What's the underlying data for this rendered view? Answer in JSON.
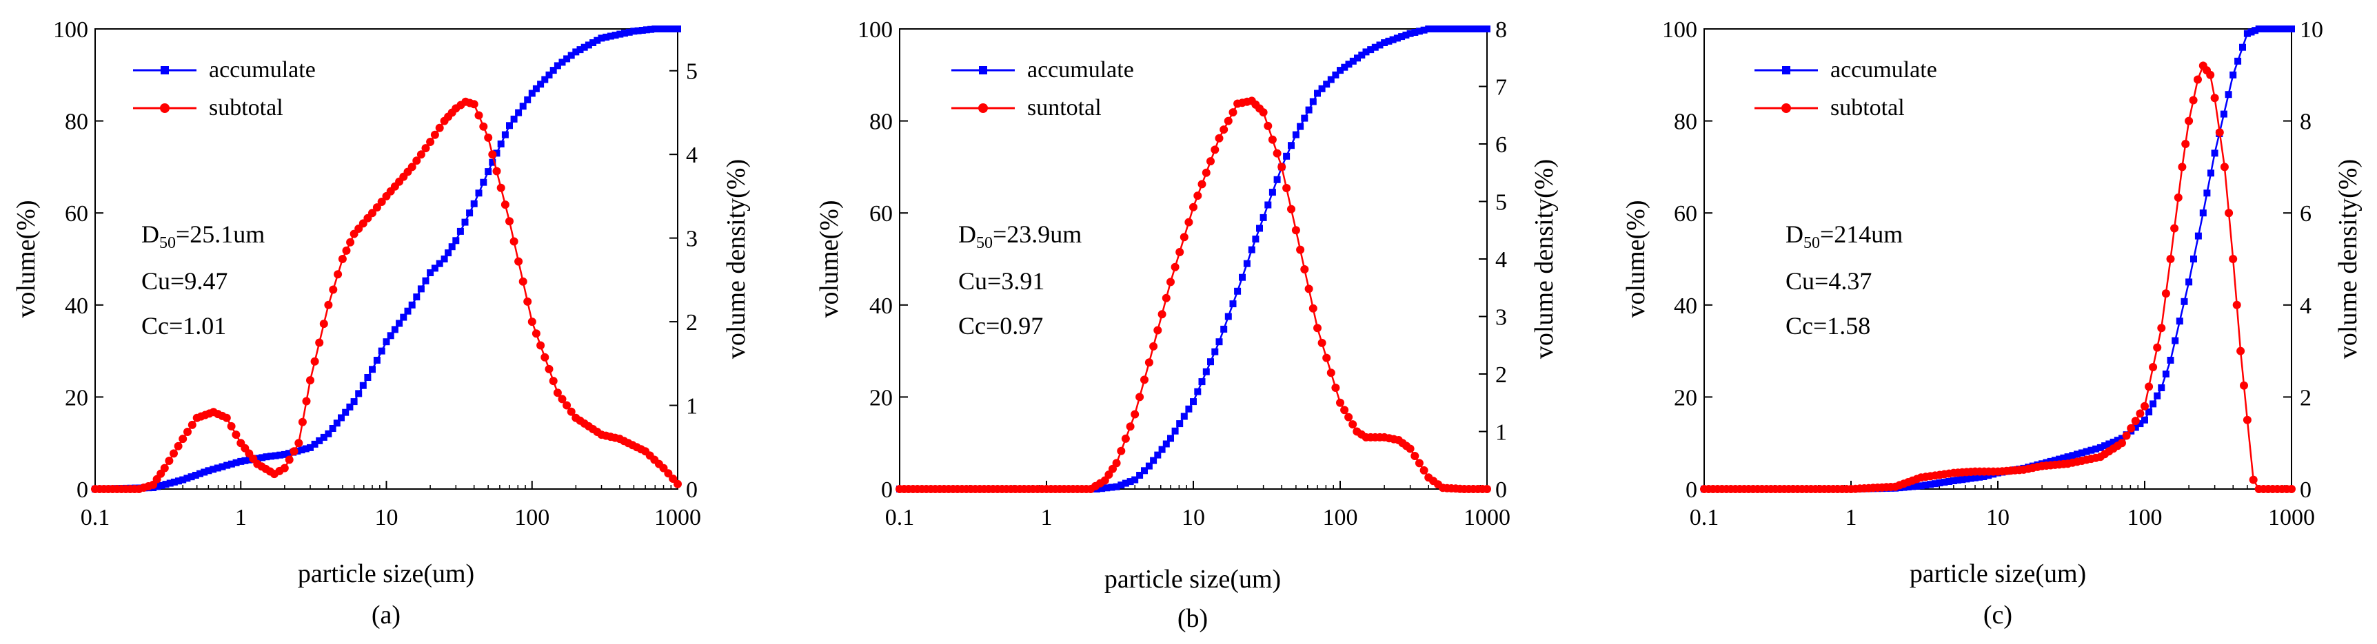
{
  "figure": {
    "panels": [
      "a",
      "b",
      "c"
    ]
  },
  "chart_data": [
    {
      "panel_label": "(a)",
      "type": "line",
      "xscale": "log",
      "xlabel": "particle size(um)",
      "ylabel": "volume(%)",
      "y2label": "volume density(%)",
      "xlim": [
        0.1,
        1000
      ],
      "ylim": [
        0,
        100
      ],
      "y2lim": [
        0,
        5.5
      ],
      "xticks": [
        "0.1",
        "1",
        "10",
        "100",
        "1000"
      ],
      "yticks": [
        "0",
        "20",
        "40",
        "60",
        "80",
        "100"
      ],
      "y2ticks": [
        "0",
        "1",
        "2",
        "3",
        "4",
        "5"
      ],
      "legend": {
        "position": "top-left",
        "entries": [
          "accumulate",
          "subtotal"
        ]
      },
      "annotations": {
        "d50_value": "=25.1um",
        "cu": "Cu=9.47",
        "cc": "Cc=1.01"
      },
      "series": [
        {
          "name": "accumulate",
          "axis": "left",
          "color": "#0000ff",
          "marker": "square",
          "x": [
            0.1,
            0.25,
            0.4,
            0.6,
            1,
            1.5,
            2,
            3,
            4,
            6,
            8,
            10,
            15,
            20,
            25,
            30,
            40,
            50,
            70,
            100,
            150,
            200,
            300,
            500,
            700,
            1000
          ],
          "y": [
            0,
            0.3,
            2,
            4,
            6,
            7,
            7.5,
            9,
            12,
            19,
            26,
            32,
            40,
            47,
            50,
            54,
            62,
            69,
            79,
            86,
            92,
            95,
            98,
            99.5,
            100,
            100
          ]
        },
        {
          "name": "subtotal",
          "axis": "right",
          "color": "#ff0000",
          "marker": "circle",
          "x": [
            0.1,
            0.2,
            0.25,
            0.3,
            0.4,
            0.5,
            0.65,
            0.8,
            1,
            1.3,
            1.7,
            2,
            2.5,
            3,
            4,
            5,
            6,
            8,
            10,
            15,
            20,
            25,
            30,
            35,
            40,
            50,
            70,
            100,
            150,
            200,
            300,
            400,
            600,
            800,
            1000
          ],
          "y": [
            0,
            0,
            0.05,
            0.25,
            0.6,
            0.85,
            0.92,
            0.85,
            0.55,
            0.3,
            0.18,
            0.25,
            0.55,
            1.3,
            2.2,
            2.75,
            3.05,
            3.3,
            3.5,
            3.85,
            4.15,
            4.4,
            4.55,
            4.63,
            4.6,
            4.2,
            3.2,
            2.0,
            1.15,
            0.85,
            0.65,
            0.6,
            0.45,
            0.25,
            0.06
          ]
        }
      ]
    },
    {
      "panel_label": "(b)",
      "type": "line",
      "xscale": "log",
      "xlabel": "particle size(um)",
      "ylabel": "volume(%)",
      "y2label": "volume density(%)",
      "xlim": [
        0.1,
        1000
      ],
      "ylim": [
        0,
        100
      ],
      "y2lim": [
        0,
        8
      ],
      "xticks": [
        "0.1",
        "1",
        "10",
        "100",
        "1000"
      ],
      "yticks": [
        "0",
        "20",
        "40",
        "60",
        "80",
        "100"
      ],
      "y2ticks": [
        "0",
        "1",
        "2",
        "3",
        "4",
        "5",
        "6",
        "7",
        "8"
      ],
      "legend": {
        "position": "top-left",
        "entries": [
          "accumulate",
          "suntotal"
        ]
      },
      "annotations": {
        "d50_value": "=23.9um",
        "cu": "Cu=3.91",
        "cc": "Cc=0.97"
      },
      "series": [
        {
          "name": "accumulate",
          "axis": "left",
          "color": "#0000ff",
          "marker": "square",
          "x": [
            0.1,
            1,
            2.2,
            3,
            4,
            5,
            7,
            10,
            15,
            20,
            25,
            30,
            40,
            50,
            70,
            100,
            150,
            200,
            300,
            400,
            600,
            1000
          ],
          "y": [
            0,
            0,
            0,
            0.5,
            2,
            5,
            11,
            19,
            32,
            43,
            52,
            59,
            70,
            77,
            86,
            91,
            95,
            97,
            99,
            100,
            100,
            100
          ]
        },
        {
          "name": "suntotal",
          "axis": "right",
          "color": "#ff0000",
          "marker": "circle",
          "x": [
            0.1,
            1,
            2,
            2.5,
            3,
            4,
            5,
            7,
            10,
            15,
            20,
            25,
            30,
            40,
            50,
            70,
            100,
            130,
            150,
            200,
            250,
            300,
            400,
            500,
            700,
            1000
          ],
          "y": [
            0,
            0,
            0,
            0.15,
            0.45,
            1.3,
            2.2,
            3.6,
            4.9,
            6.1,
            6.7,
            6.75,
            6.55,
            5.6,
            4.5,
            2.8,
            1.5,
            1.0,
            0.9,
            0.9,
            0.85,
            0.7,
            0.2,
            0.02,
            0,
            0
          ]
        }
      ]
    },
    {
      "panel_label": "(c)",
      "type": "line",
      "xscale": "log",
      "xlabel": "particle size(um)",
      "ylabel": "volume(%)",
      "y2label": "volume density(%)",
      "xlim": [
        0.1,
        1000
      ],
      "ylim": [
        0,
        100
      ],
      "y2lim": [
        0,
        10
      ],
      "xticks": [
        "0.1",
        "1",
        "10",
        "100",
        "1000"
      ],
      "yticks": [
        "0",
        "20",
        "40",
        "60",
        "80",
        "100"
      ],
      "y2ticks": [
        "0",
        "2",
        "4",
        "6",
        "8",
        "10"
      ],
      "legend": {
        "position": "top-left",
        "entries": [
          "accumulate",
          "subtotal"
        ]
      },
      "annotations": {
        "d50_value": "=214um",
        "cu": "Cu=4.37",
        "cc": "Cc=1.58"
      },
      "series": [
        {
          "name": "accumulate",
          "axis": "left",
          "color": "#0000ff",
          "marker": "square",
          "x": [
            0.1,
            1,
            2,
            3,
            5,
            8,
            10,
            15,
            20,
            30,
            50,
            70,
            100,
            130,
            150,
            200,
            250,
            300,
            400,
            500,
            600,
            800,
            1000
          ],
          "y": [
            0,
            0,
            0.2,
            0.7,
            1.8,
            2.7,
            3.5,
            4.5,
            5.5,
            7,
            9,
            11,
            15,
            22,
            28,
            45,
            60,
            73,
            90,
            99,
            100,
            100,
            100
          ]
        },
        {
          "name": "subtotal",
          "axis": "right",
          "color": "#ff0000",
          "marker": "circle",
          "x": [
            0.1,
            1,
            2,
            3,
            5,
            7,
            10,
            15,
            20,
            30,
            50,
            70,
            100,
            130,
            150,
            180,
            200,
            230,
            250,
            280,
            300,
            350,
            400,
            450,
            500,
            550,
            600,
            800,
            1000
          ],
          "y": [
            0,
            0,
            0.05,
            0.25,
            0.35,
            0.38,
            0.38,
            0.42,
            0.5,
            0.55,
            0.7,
            1.0,
            1.8,
            3.5,
            5.0,
            7.0,
            8.0,
            8.9,
            9.2,
            9.0,
            8.5,
            7.0,
            5.0,
            3.0,
            1.5,
            0.2,
            0,
            0,
            0
          ]
        }
      ]
    }
  ]
}
